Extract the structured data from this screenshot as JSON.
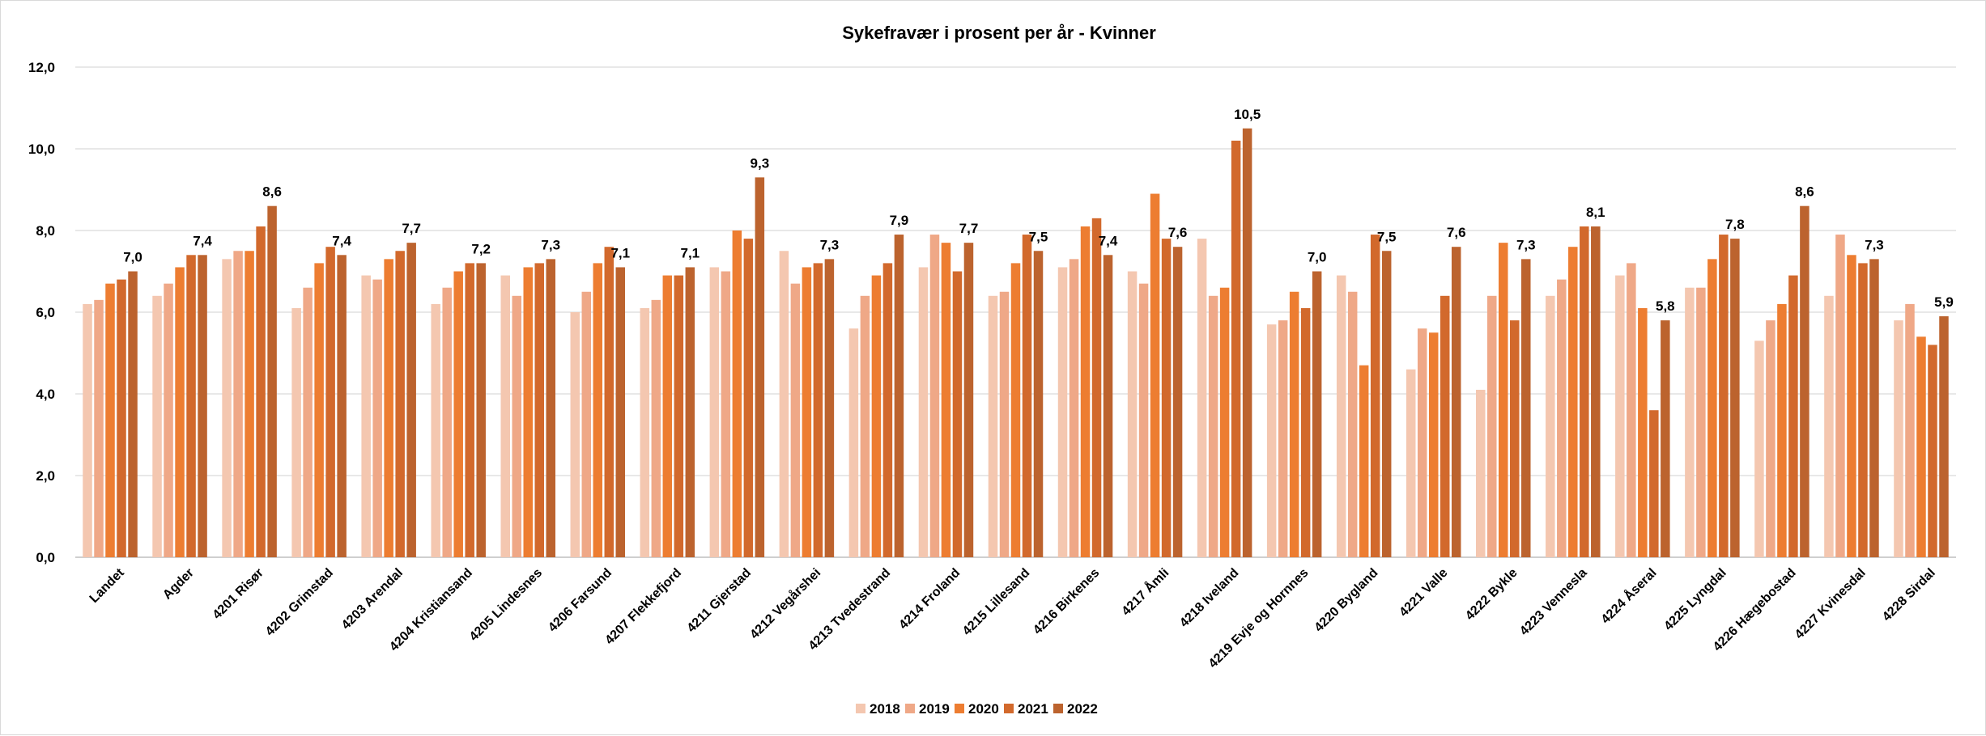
{
  "chart_data": {
    "type": "bar",
    "title": "Sykefravær i prosent per år - Kvinner",
    "xlabel": "",
    "ylabel": "",
    "ylim": [
      0,
      12
    ],
    "yticks": [
      "0,0",
      "2,0",
      "4,0",
      "6,0",
      "8,0",
      "10,0",
      "12,0"
    ],
    "grid": true,
    "legend_position": "bottom",
    "categories": [
      "Landet",
      "Agder",
      "4201 Risør",
      "4202 Grimstad",
      "4203 Arendal",
      "4204 Kristiansand",
      "4205 Lindesnes",
      "4206 Farsund",
      "4207 Flekkefjord",
      "4211 Gjerstad",
      "4212 Vegårshei",
      "4213 Tvedestrand",
      "4214 Froland",
      "4215 Lillesand",
      "4216 Birkenes",
      "4217 Åmli",
      "4218 Iveland",
      "4219 Evje og Hornnes",
      "4220 Bygland",
      "4221 Valle",
      "4222 Bykle",
      "4223 Vennesla",
      "4224 Åseral",
      "4225 Lyngdal",
      "4226 Hægebostad",
      "4227 Kvinesdal",
      "4228 Sirdal"
    ],
    "series": [
      {
        "name": "2018",
        "color": "#f4c7b0",
        "values": [
          6.2,
          6.4,
          7.3,
          6.1,
          6.9,
          6.2,
          6.9,
          6.0,
          6.1,
          7.1,
          7.5,
          5.6,
          7.1,
          6.4,
          7.1,
          7.0,
          7.8,
          5.7,
          6.9,
          4.6,
          4.1,
          6.4,
          6.9,
          6.6,
          5.3,
          6.4,
          5.8
        ]
      },
      {
        "name": "2019",
        "color": "#efa887",
        "values": [
          6.3,
          6.7,
          7.5,
          6.6,
          6.8,
          6.6,
          6.4,
          6.5,
          6.3,
          7.0,
          6.7,
          6.4,
          7.9,
          6.5,
          7.3,
          6.7,
          6.4,
          5.8,
          6.5,
          5.6,
          6.4,
          6.8,
          7.2,
          6.6,
          5.8,
          7.9,
          6.2
        ]
      },
      {
        "name": "2020",
        "color": "#ed7d31",
        "values": [
          6.7,
          7.1,
          7.5,
          7.2,
          7.3,
          7.0,
          7.1,
          7.2,
          6.9,
          8.0,
          7.1,
          6.9,
          7.7,
          7.2,
          8.1,
          8.9,
          6.6,
          6.5,
          4.7,
          5.5,
          7.7,
          7.6,
          6.1,
          7.3,
          6.2,
          7.4,
          5.4
        ]
      },
      {
        "name": "2021",
        "color": "#d2692c",
        "values": [
          6.8,
          7.4,
          8.1,
          7.6,
          7.5,
          7.2,
          7.2,
          7.6,
          6.9,
          7.8,
          7.2,
          7.2,
          7.0,
          7.9,
          8.3,
          7.8,
          10.2,
          6.1,
          7.9,
          6.4,
          5.8,
          8.1,
          3.6,
          7.9,
          6.9,
          7.2,
          5.2
        ]
      },
      {
        "name": "2022",
        "color": "#bc632e",
        "values": [
          7.0,
          7.4,
          8.6,
          7.4,
          7.7,
          7.2,
          7.3,
          7.1,
          7.1,
          9.3,
          7.3,
          7.9,
          7.7,
          7.5,
          7.4,
          7.6,
          10.5,
          7.0,
          7.5,
          7.6,
          7.3,
          8.1,
          5.8,
          7.8,
          8.6,
          7.3,
          5.9
        ]
      }
    ],
    "data_labels": [
      "7,0",
      "7,4",
      "8,6",
      "7,4",
      "7,7",
      "7,2",
      "7,3",
      "7,1",
      "7,1",
      "9,3",
      "7,3",
      "7,9",
      "7,7",
      "7,5",
      "7,4",
      "7,6",
      "10,5",
      "7,0",
      "7,5",
      "7,6",
      "7,3",
      "8,1",
      "5,8",
      "7,8",
      "8,6",
      "7,3",
      "5,9"
    ]
  }
}
